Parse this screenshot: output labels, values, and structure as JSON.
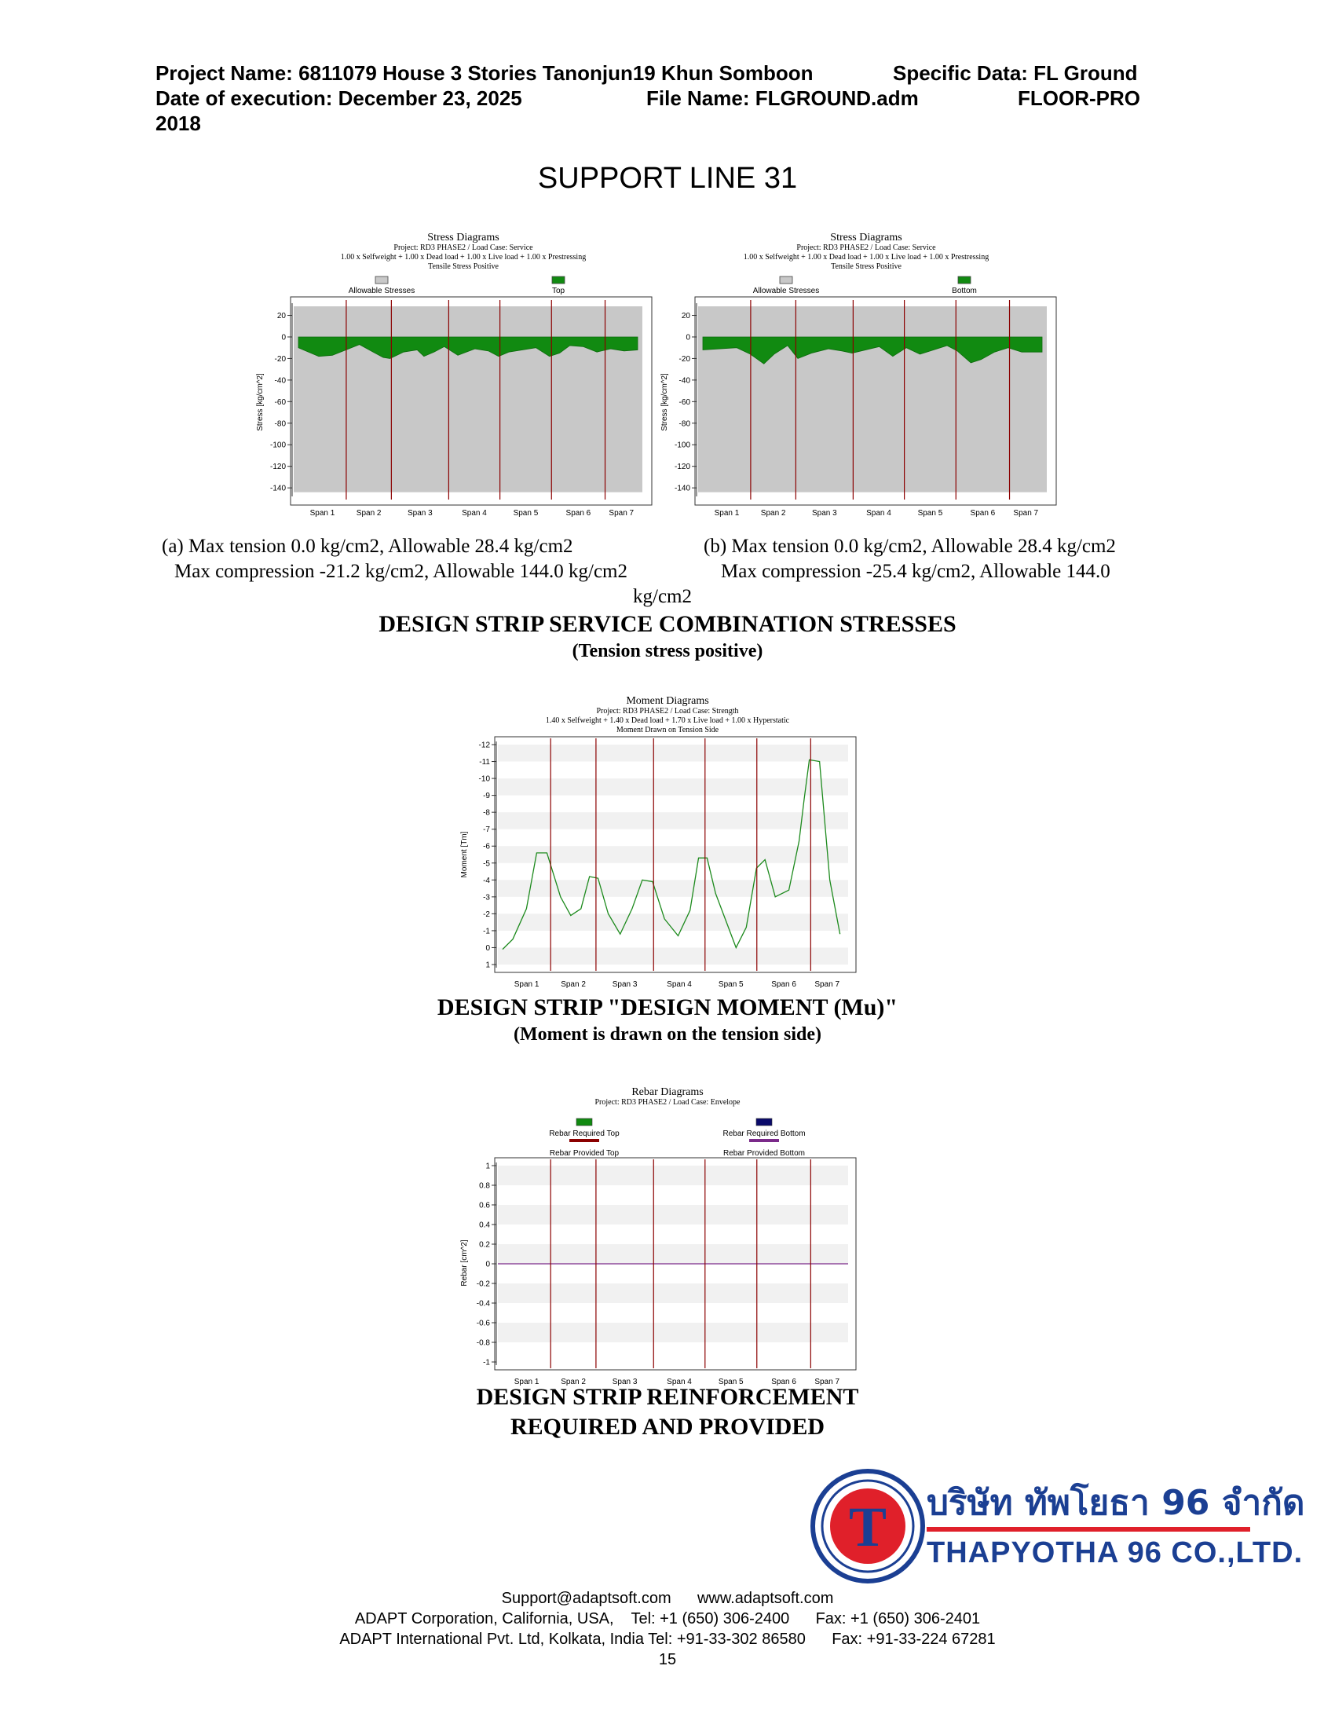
{
  "header": {
    "project_name": "Project Name: 6811079 House 3 Stories Tanonjun19 Khun Somboon",
    "specific_data": "Specific Data: FL Ground",
    "date": "Date of execution: December 23, 2025",
    "file_name": "File Name: FLGROUND.adm",
    "program": "FLOOR-PRO",
    "year": "2018"
  },
  "page_title": "SUPPORT LINE 31",
  "stress_section": {
    "caption_a_line1": "(a) Max tension 0.0 kg/cm2, Allowable 28.4 kg/cm2",
    "caption_a_line2": "Max compression -21.2 kg/cm2, Allowable 144.0 kg/cm2",
    "caption_b_line1": "(b) Max tension 0.0 kg/cm2, Allowable 28.4 kg/cm2",
    "caption_b_line2": "Max compression -25.4 kg/cm2, Allowable 144.0",
    "caption_b_line3": "kg/cm2",
    "heading": "DESIGN STRIP SERVICE COMBINATION STRESSES",
    "subheading": "(Tension stress positive)"
  },
  "moment_section": {
    "heading": "DESIGN STRIP \"DESIGN MOMENT (Mu)\"",
    "subheading": "(Moment is drawn on the tension side)"
  },
  "rebar_section": {
    "heading_line1": "DESIGN STRIP REINFORCEMENT",
    "heading_line2": "REQUIRED AND PROVIDED"
  },
  "logo": {
    "letter": "T",
    "thai_name": "บริษัท ทัพโยธา 96 จำกัด",
    "english_name": "THAPYOTHA 96 CO.,LTD."
  },
  "footer": {
    "line1": "Support@adaptsoft.com      www.adaptsoft.com",
    "line2": "ADAPT Corporation, California, USA,    Tel: +1 (650) 306-2400      Fax: +1 (650) 306-2401",
    "line3": "ADAPT International Pvt. Ltd, Kolkata, India Tel: +91-33-302 86580      Fax: +91-33-224 67281",
    "page_number": "15"
  },
  "colors": {
    "stress_fill": "#118a11",
    "allowable_fill": "#c8c8c8",
    "support_line": "#8b0000",
    "moment_line": "#1d8a1d",
    "rebar_provided": "#7b2a8a",
    "logo_blue": "#1b3f93",
    "logo_red": "#e0202a"
  },
  "chart_data": [
    {
      "type": "area",
      "title": "Stress Diagrams",
      "subtitle_lines": [
        "Project: RD3 PHASE2 / Load Case: Service",
        "1.00 x Selfweight + 1.00 x Dead load + 1.00 x Live load + 1.00 x Prestressing",
        "Tensile Stress Positive"
      ],
      "legend": [
        "Allowable Stresses",
        "Top"
      ],
      "ylabel": "Stress [kg/cm^2]",
      "ylim": [
        -145,
        28.4
      ],
      "yticks": [
        20,
        0,
        -20,
        -40,
        -60,
        -80,
        -100,
        -120,
        -140
      ],
      "categories": [
        "Span 1",
        "Span 2",
        "Span 3",
        "Span 4",
        "Span 5",
        "Span 6",
        "Span 7"
      ],
      "allowable": {
        "tension": 28.4,
        "compression": -144.0
      },
      "supports": [
        0.141,
        0.274,
        0.443,
        0.594,
        0.746,
        0.904
      ],
      "series": [
        {
          "name": "Top",
          "x": [
            0,
            0.03,
            0.06,
            0.1,
            0.14,
            0.18,
            0.22,
            0.25,
            0.27,
            0.31,
            0.35,
            0.37,
            0.4,
            0.43,
            0.47,
            0.52,
            0.56,
            0.59,
            0.62,
            0.66,
            0.7,
            0.74,
            0.77,
            0.8,
            0.84,
            0.88,
            0.92,
            0.96,
            1.0
          ],
          "values": [
            -10,
            -14,
            -18,
            -17,
            -12,
            -7,
            -14,
            -19,
            -20,
            -14,
            -12,
            -18,
            -14,
            -9,
            -17,
            -11,
            -13,
            -18,
            -14,
            -12,
            -10,
            -18,
            -15,
            -8,
            -9,
            -14,
            -11,
            -13,
            -12
          ]
        }
      ]
    },
    {
      "type": "area",
      "title": "Stress Diagrams",
      "subtitle_lines": [
        "Project: RD3 PHASE2 / Load Case: Service",
        "1.00 x Selfweight + 1.00 x Dead load + 1.00 x Live load + 1.00 x Prestressing",
        "Tensile Stress Positive"
      ],
      "legend": [
        "Allowable Stresses",
        "Bottom"
      ],
      "ylabel": "Stress [kg/cm^2]",
      "ylim": [
        -145,
        28.4
      ],
      "yticks": [
        20,
        0,
        -20,
        -40,
        -60,
        -80,
        -100,
        -120,
        -140
      ],
      "categories": [
        "Span 1",
        "Span 2",
        "Span 3",
        "Span 4",
        "Span 5",
        "Span 6",
        "Span 7"
      ],
      "allowable": {
        "tension": 28.4,
        "compression": -144.0
      },
      "supports": [
        0.141,
        0.274,
        0.443,
        0.594,
        0.746,
        0.904
      ],
      "series": [
        {
          "name": "Bottom",
          "x": [
            0,
            0.05,
            0.1,
            0.14,
            0.18,
            0.21,
            0.25,
            0.28,
            0.32,
            0.37,
            0.41,
            0.44,
            0.48,
            0.52,
            0.56,
            0.6,
            0.64,
            0.68,
            0.72,
            0.75,
            0.79,
            0.82,
            0.86,
            0.9,
            0.94,
            1.0
          ],
          "values": [
            -12,
            -11,
            -10,
            -16,
            -25,
            -16,
            -8,
            -20,
            -15,
            -11,
            -13,
            -15,
            -12,
            -9,
            -18,
            -10,
            -16,
            -12,
            -8,
            -13,
            -24,
            -21,
            -14,
            -10,
            -14,
            -14
          ]
        }
      ]
    },
    {
      "type": "line",
      "title": "Moment Diagrams",
      "subtitle_lines": [
        "Project: RD3 PHASE2 / Load Case: Strength",
        "1.40 x Selfweight + 1.40 x Dead load + 1.70 x Live load + 1.00 x Hyperstatic",
        "Moment Drawn on Tension Side"
      ],
      "ylabel": "Moment [Tm]",
      "ylim": [
        1,
        -12
      ],
      "yticks": [
        -12,
        -11,
        -10,
        -9,
        -8,
        -7,
        -6,
        -5,
        -4,
        -3,
        -2,
        -1,
        0,
        1
      ],
      "categories": [
        "Span 1",
        "Span 2",
        "Span 3",
        "Span 4",
        "Span 5",
        "Span 6",
        "Span 7"
      ],
      "supports": [
        0.141,
        0.274,
        0.443,
        0.594,
        0.746,
        0.904
      ],
      "series": [
        {
          "name": "Moment",
          "x": [
            0.0,
            0.03,
            0.07,
            0.1,
            0.13,
            0.17,
            0.2,
            0.23,
            0.255,
            0.28,
            0.31,
            0.345,
            0.38,
            0.41,
            0.44,
            0.475,
            0.515,
            0.55,
            0.575,
            0.6,
            0.625,
            0.655,
            0.685,
            0.715,
            0.745,
            0.77,
            0.8,
            0.84,
            0.87,
            0.885,
            0.9,
            0.93,
            0.96,
            0.99
          ],
          "values": [
            0.1,
            -0.5,
            -2.3,
            -5.6,
            -5.6,
            -3.0,
            -1.9,
            -2.3,
            -4.2,
            -4.1,
            -2.0,
            -0.8,
            -2.3,
            -4.0,
            -3.9,
            -1.7,
            -0.7,
            -2.2,
            -5.3,
            -5.3,
            -3.2,
            -1.6,
            0.0,
            -1.2,
            -4.7,
            -5.2,
            -3.0,
            -3.4,
            -6.3,
            -8.8,
            -11.1,
            -11.0,
            -4.0,
            -0.8
          ]
        }
      ]
    },
    {
      "type": "line",
      "title": "Rebar Diagrams",
      "subtitle_lines": [
        "Project: RD3 PHASE2 / Load Case: Envelope"
      ],
      "legend": [
        "Rebar Required Top",
        "Rebar Required Bottom",
        "Rebar Provided Top",
        "Rebar Provided Bottom"
      ],
      "ylabel": "Rebar [cm^2]",
      "ylim": [
        -1.0,
        1.0
      ],
      "yticks": [
        1.0,
        0.8,
        0.6,
        0.4,
        0.2,
        0,
        -0.2,
        -0.4,
        -0.6,
        -0.8,
        -1.0
      ],
      "categories": [
        "Span 1",
        "Span 2",
        "Span 3",
        "Span 4",
        "Span 5",
        "Span 6",
        "Span 7"
      ],
      "supports": [
        0.141,
        0.274,
        0.443,
        0.594,
        0.746,
        0.904
      ],
      "series": [
        {
          "name": "Rebar Provided Bottom",
          "x": [
            0,
            1
          ],
          "values": [
            0,
            0
          ]
        }
      ]
    }
  ]
}
